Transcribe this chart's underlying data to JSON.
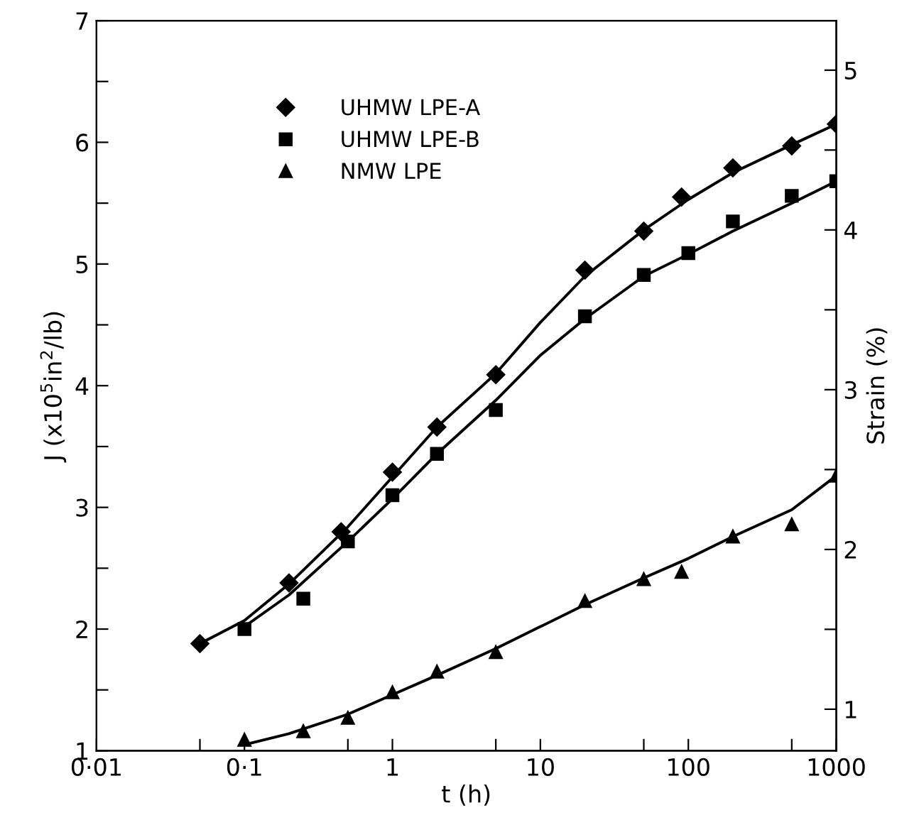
{
  "chart_data": {
    "type": "scatter",
    "xlabel": "t (h)",
    "ylabel": "J (x10$^{5}$in$^{2}$/lb)",
    "y2label": "Strain (%)",
    "log": "x",
    "xlim": [
      0.01,
      1000
    ],
    "xticks": [
      {
        "value": 0.01,
        "label": "0·01"
      },
      {
        "value": 0.05,
        "label": null
      },
      {
        "value": 0.1,
        "label": "0·1"
      },
      {
        "value": 0.5,
        "label": null
      },
      1,
      {
        "value": 5,
        "label": null
      },
      10,
      {
        "value": 50,
        "label": null
      },
      100,
      {
        "value": 500,
        "label": null
      },
      1000
    ],
    "ylim": [
      1,
      7
    ],
    "yticks": [
      1,
      {
        "value": 1.5,
        "label": null
      },
      2,
      {
        "value": 2.5,
        "label": null
      },
      3,
      {
        "value": 3.5,
        "label": null
      },
      4,
      {
        "value": 4.5,
        "label": null
      },
      5,
      {
        "value": 5.5,
        "label": null
      },
      6,
      {
        "value": 6.5,
        "label": null
      },
      7
    ],
    "y2lim": [
      0.74,
      5.31
    ],
    "y2ticks": [
      1,
      {
        "value": 1.5,
        "label": null
      },
      2,
      {
        "value": 2.5,
        "label": null
      },
      3,
      {
        "value": 3.5,
        "label": null
      },
      4,
      {
        "value": 4.5,
        "label": null
      },
      5
    ],
    "grid": false,
    "legend": "top left",
    "series": [
      {
        "name": "UHMW LPE-A",
        "color": "#000000",
        "marker": "diamond",
        "x": [
          0.05,
          0.2,
          0.45,
          1,
          2,
          5,
          20,
          50,
          90,
          200,
          500,
          1000
        ],
        "values": [
          1.88,
          2.38,
          2.8,
          3.29,
          3.66,
          4.09,
          4.95,
          5.27,
          5.55,
          5.79,
          5.97,
          6.15
        ]
      },
      {
        "name": "UHMW LPE-B",
        "color": "#000000",
        "marker": "square",
        "x": [
          0.1,
          0.25,
          0.5,
          1,
          2,
          5,
          20,
          50,
          100,
          200,
          500,
          1000
        ],
        "values": [
          2.0,
          2.25,
          2.72,
          3.1,
          3.44,
          3.8,
          4.57,
          4.91,
          5.09,
          5.35,
          5.56,
          5.68
        ]
      },
      {
        "name": "NMW LPE",
        "color": "#000000",
        "marker": "triangle",
        "x": [
          0.1,
          0.25,
          0.5,
          1,
          2,
          5,
          20,
          50,
          90,
          200,
          500,
          1000
        ],
        "values": [
          1.09,
          1.16,
          1.27,
          1.48,
          1.65,
          1.81,
          2.23,
          2.41,
          2.47,
          2.76,
          2.86,
          3.26
        ]
      },
      {
        "type": "line",
        "color": "#000000",
        "x": [
          0.05,
          0.1,
          0.2,
          0.5,
          1,
          2,
          5,
          10,
          20,
          50,
          100,
          200,
          500,
          1000
        ],
        "values": [
          1.88,
          2.07,
          2.37,
          2.84,
          3.25,
          3.66,
          4.1,
          4.52,
          4.9,
          5.28,
          5.53,
          5.75,
          5.98,
          6.15
        ]
      },
      {
        "type": "line",
        "color": "#000000",
        "x": [
          0.1,
          0.2,
          0.5,
          1,
          2,
          5,
          10,
          20,
          50,
          100,
          200,
          500,
          1000
        ],
        "values": [
          2.02,
          2.28,
          2.72,
          3.07,
          3.44,
          3.88,
          4.25,
          4.55,
          4.9,
          5.08,
          5.27,
          5.5,
          5.68
        ]
      },
      {
        "type": "line",
        "color": "#000000",
        "x": [
          0.1,
          0.2,
          0.5,
          1,
          2,
          5,
          10,
          20,
          50,
          100,
          200,
          500,
          1000
        ],
        "values": [
          1.05,
          1.14,
          1.3,
          1.46,
          1.62,
          1.84,
          2.02,
          2.2,
          2.42,
          2.58,
          2.76,
          2.98,
          3.26
        ]
      }
    ]
  }
}
